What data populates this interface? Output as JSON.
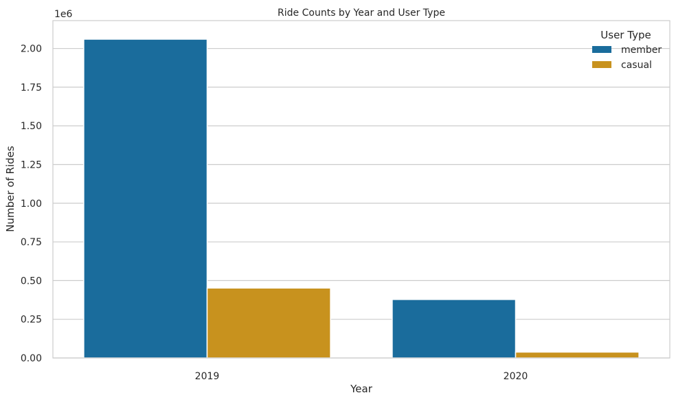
{
  "chart_data": {
    "type": "bar",
    "title": "Ride Counts by Year and User Type",
    "xlabel": "Year",
    "ylabel": "Number of Rides",
    "offset_label": "1e6",
    "categories": [
      "2019",
      "2020"
    ],
    "series": [
      {
        "name": "member",
        "color": "#1A6C9C",
        "values": [
          2060000,
          378000
        ]
      },
      {
        "name": "casual",
        "color": "#C8921E",
        "values": [
          452000,
          38000
        ]
      }
    ],
    "ylim": [
      0,
      2180000
    ],
    "y_ticks": [
      {
        "value": 0,
        "label": "0.00"
      },
      {
        "value": 250000,
        "label": "0.25"
      },
      {
        "value": 500000,
        "label": "0.50"
      },
      {
        "value": 750000,
        "label": "0.75"
      },
      {
        "value": 1000000,
        "label": "1.00"
      },
      {
        "value": 1250000,
        "label": "1.25"
      },
      {
        "value": 1500000,
        "label": "1.50"
      },
      {
        "value": 1750000,
        "label": "1.75"
      },
      {
        "value": 2000000,
        "label": "2.00"
      }
    ],
    "grid": true,
    "legend": {
      "title": "User Type",
      "placement": "top-right"
    }
  }
}
